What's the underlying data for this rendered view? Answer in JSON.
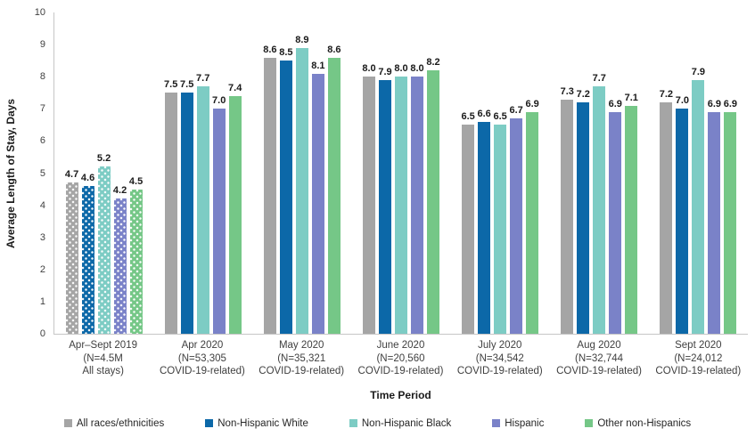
{
  "chart_data": {
    "type": "bar",
    "title": "",
    "ylabel": "Average Length of Stay, Days",
    "xlabel": "Time Period",
    "ylim": [
      0,
      10
    ],
    "ytick_step": 1,
    "grid": false,
    "legend_position": "bottom",
    "value_label_decimals": 1,
    "categories": [
      {
        "lines": [
          "Apr–Sept 2019",
          "(N=4.5M",
          "All stays)"
        ],
        "pattern": "dotted"
      },
      {
        "lines": [
          "Apr 2020",
          "(N=53,305",
          "COVID-19-related)"
        ],
        "pattern": "solid"
      },
      {
        "lines": [
          "May 2020",
          "(N=35,321",
          "COVID-19-related)"
        ],
        "pattern": "solid"
      },
      {
        "lines": [
          "June 2020",
          "(N=20,560",
          "COVID-19-related)"
        ],
        "pattern": "solid"
      },
      {
        "lines": [
          "July 2020",
          "(N=34,542",
          "COVID-19-related)"
        ],
        "pattern": "solid"
      },
      {
        "lines": [
          "Aug 2020",
          "(N=32,744",
          "COVID-19-related)"
        ],
        "pattern": "solid"
      },
      {
        "lines": [
          "Sept 2020",
          "(N=24,012",
          "COVID-19-related)"
        ],
        "pattern": "solid"
      }
    ],
    "series": [
      {
        "name": "All races/ethnicities",
        "color": "#A5A5A5",
        "values": [
          4.7,
          7.5,
          8.6,
          8.0,
          6.5,
          7.3,
          7.2
        ]
      },
      {
        "name": "Non-Hispanic White",
        "color": "#0C68A8",
        "values": [
          4.6,
          7.5,
          8.5,
          7.9,
          6.6,
          7.2,
          7.0
        ]
      },
      {
        "name": "Non-Hispanic Black",
        "color": "#7DCCC4",
        "values": [
          5.2,
          7.7,
          8.9,
          8.0,
          6.5,
          7.7,
          7.9
        ]
      },
      {
        "name": "Hispanic",
        "color": "#7A82C8",
        "values": [
          4.2,
          7.0,
          8.1,
          8.0,
          6.7,
          6.9,
          6.9
        ]
      },
      {
        "name": "Other non-Hispanics",
        "color": "#75C787",
        "values": [
          4.5,
          7.4,
          8.6,
          8.2,
          6.9,
          7.1,
          6.9
        ]
      }
    ],
    "colors": {
      "axis_line": "#C6C6C6",
      "tick_text": "#404040",
      "value_text": "#1A1A1A"
    }
  }
}
